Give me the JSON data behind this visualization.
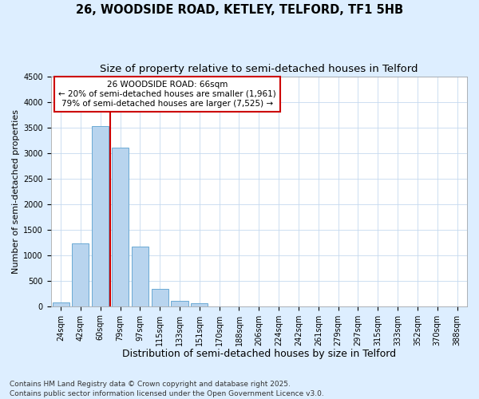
{
  "title1": "26, WOODSIDE ROAD, KETLEY, TELFORD, TF1 5HB",
  "title2": "Size of property relative to semi-detached houses in Telford",
  "xlabel": "Distribution of semi-detached houses by size in Telford",
  "ylabel": "Number of semi-detached properties",
  "categories": [
    "24sqm",
    "42sqm",
    "60sqm",
    "79sqm",
    "97sqm",
    "115sqm",
    "133sqm",
    "151sqm",
    "170sqm",
    "188sqm",
    "206sqm",
    "224sqm",
    "242sqm",
    "261sqm",
    "279sqm",
    "297sqm",
    "315sqm",
    "333sqm",
    "352sqm",
    "370sqm",
    "388sqm"
  ],
  "values": [
    75,
    1230,
    3530,
    3100,
    1160,
    340,
    110,
    60,
    0,
    0,
    0,
    0,
    0,
    0,
    0,
    0,
    0,
    0,
    0,
    0,
    0
  ],
  "bar_color": "#b8d4ee",
  "bar_edge_color": "#6aaad4",
  "vline_color": "#cc0000",
  "ylim": [
    0,
    4500
  ],
  "yticks": [
    0,
    500,
    1000,
    1500,
    2000,
    2500,
    3000,
    3500,
    4000,
    4500
  ],
  "annotation_line1": "26 WOODSIDE ROAD: 66sqm",
  "annotation_line2": "← 20% of semi-detached houses are smaller (1,961)",
  "annotation_line3": "79% of semi-detached houses are larger (7,525) →",
  "annotation_box_facecolor": "#ffffff",
  "annotation_box_edgecolor": "#cc0000",
  "footnote": "Contains HM Land Registry data © Crown copyright and database right 2025.\nContains public sector information licensed under the Open Government Licence v3.0.",
  "bg_color": "#ddeeff",
  "plot_bg_color": "#ffffff",
  "grid_color": "#c5d9ef",
  "title1_fontsize": 10.5,
  "title2_fontsize": 9.5,
  "xlabel_fontsize": 9,
  "ylabel_fontsize": 8,
  "tick_fontsize": 7,
  "annotation_fontsize": 7.5,
  "footnote_fontsize": 6.5
}
